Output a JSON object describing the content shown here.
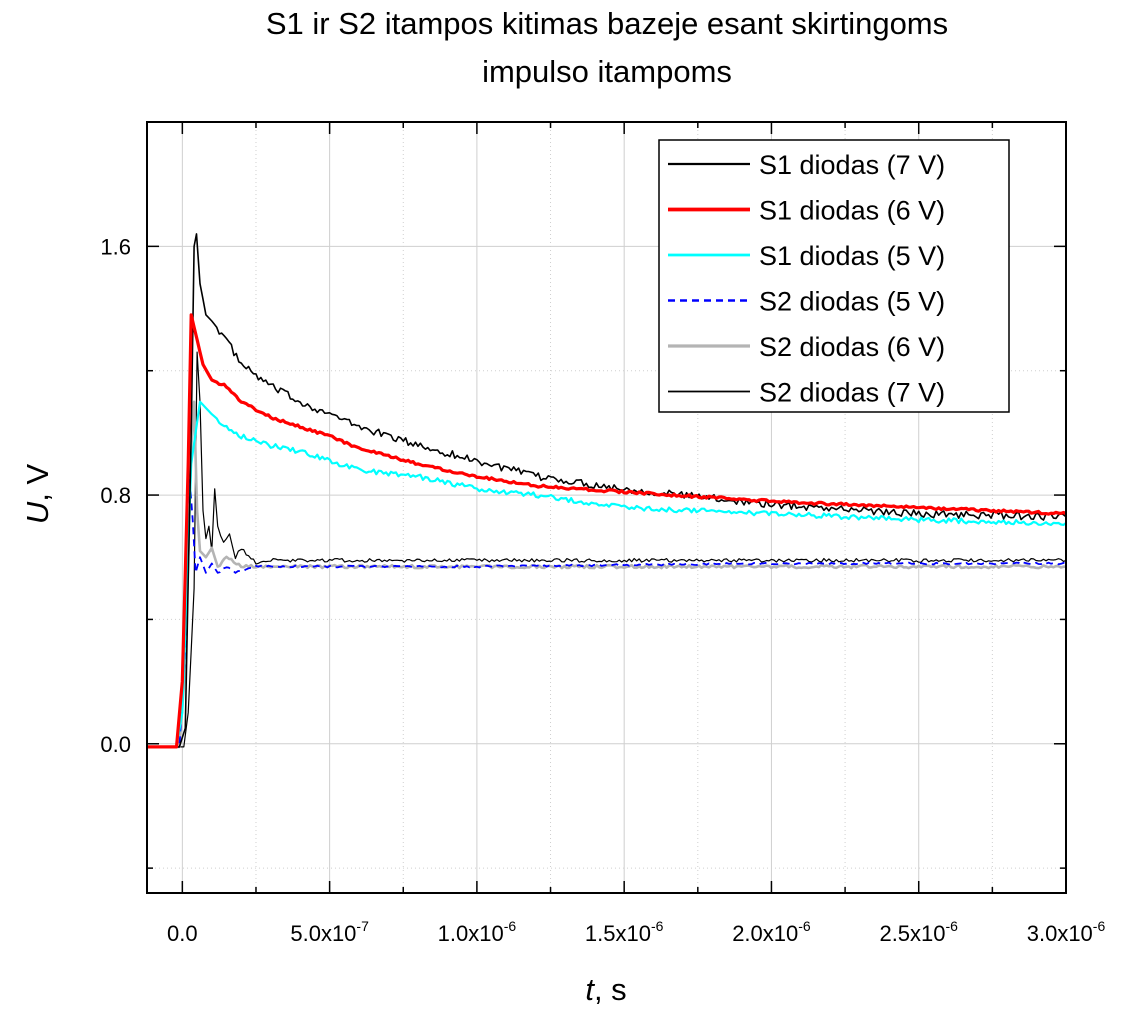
{
  "chart_data": {
    "type": "line",
    "title_lines": [
      "S1 ir S2 itampos kitimas bazeje esant skirtingoms",
      "impulso itampoms"
    ],
    "xlabel": "t",
    "xlabel_unit": ", s",
    "ylabel": "U",
    "ylabel_unit": ", V",
    "xlim": [
      -1.2e-07,
      3e-06
    ],
    "ylim": [
      -0.48,
      2.0
    ],
    "x_ticks": [
      {
        "value": 0,
        "mant": "0.0",
        "exp": ""
      },
      {
        "value": 5e-07,
        "mant": "5.0x10",
        "exp": "-7"
      },
      {
        "value": 1e-06,
        "mant": "1.0x10",
        "exp": "-6"
      },
      {
        "value": 1.5e-06,
        "mant": "1.5x10",
        "exp": "-6"
      },
      {
        "value": 2e-06,
        "mant": "2.0x10",
        "exp": "-6"
      },
      {
        "value": 2.5e-06,
        "mant": "2.5x10",
        "exp": "-6"
      },
      {
        "value": 3e-06,
        "mant": "3.0x10",
        "exp": "-6"
      }
    ],
    "y_ticks": [
      {
        "value": 0,
        "label": "0.0"
      },
      {
        "value": 0.8,
        "label": "0.8"
      },
      {
        "value": 1.6,
        "label": "1.6"
      }
    ],
    "y_minor_ticks": [
      -0.4,
      0.4,
      1.2
    ],
    "grid": true,
    "legend_position": "top-right",
    "series": [
      {
        "name": "S1 diodas (7 V)",
        "color": "#000000",
        "width": 1.6,
        "dash": "",
        "noise": 0.012,
        "x": [
          -1.2e-07,
          -1e-08,
          1e-08,
          3e-08,
          4e-08,
          4.8e-08,
          6e-08,
          8e-08,
          1e-07,
          1.5e-07,
          2e-07,
          3e-07,
          4e-07,
          5e-07,
          6e-07,
          8e-07,
          1e-06,
          1.2e-06,
          1.5e-06,
          2e-06,
          2.5e-06,
          3e-06
        ],
        "y": [
          -0.01,
          -0.01,
          0.05,
          1.0,
          1.6,
          1.64,
          1.48,
          1.38,
          1.36,
          1.3,
          1.22,
          1.15,
          1.1,
          1.06,
          1.02,
          0.96,
          0.91,
          0.86,
          0.82,
          0.77,
          0.74,
          0.73
        ]
      },
      {
        "name": "S1 diodas (6 V)",
        "color": "#ff0000",
        "width": 3.2,
        "dash": "",
        "noise": 0.004,
        "x": [
          -1.2e-07,
          -2e-08,
          0,
          2e-08,
          3e-08,
          5e-08,
          7e-08,
          1e-07,
          1.5e-07,
          2e-07,
          3e-07,
          4e-07,
          5e-07,
          6e-07,
          8e-07,
          1e-06,
          1.2e-06,
          1.5e-06,
          2e-06,
          2.5e-06,
          3e-06
        ],
        "y": [
          -0.01,
          -0.01,
          0.2,
          0.9,
          1.38,
          1.3,
          1.22,
          1.17,
          1.15,
          1.1,
          1.05,
          1.02,
          0.99,
          0.95,
          0.9,
          0.86,
          0.83,
          0.81,
          0.78,
          0.76,
          0.74
        ]
      },
      {
        "name": "S1 diodas (5 V)",
        "color": "#00ffff",
        "width": 2.2,
        "dash": "",
        "noise": 0.008,
        "x": [
          -1.2e-07,
          -2e-08,
          0,
          3e-08,
          6e-08,
          8e-08,
          1e-07,
          1.5e-07,
          2e-07,
          3e-07,
          4e-07,
          5e-07,
          6e-07,
          8e-07,
          1e-06,
          1.2e-06,
          1.5e-06,
          2e-06,
          2.5e-06,
          3e-06
        ],
        "y": [
          -0.01,
          -0.01,
          0.1,
          0.9,
          1.1,
          1.08,
          1.06,
          1.02,
          0.99,
          0.96,
          0.94,
          0.91,
          0.88,
          0.86,
          0.82,
          0.8,
          0.76,
          0.74,
          0.72,
          0.71
        ]
      },
      {
        "name": "S2 diodas (5 V)",
        "color": "#0000ff",
        "width": 1.8,
        "dash": "7,5",
        "noise": 0.003,
        "x": [
          -1.2e-07,
          -1e-08,
          1e-08,
          2.5e-08,
          3.5e-08,
          4.5e-08,
          6e-08,
          8e-08,
          1e-07,
          1.2e-07,
          1.5e-07,
          1.8e-07,
          2.5e-07,
          4e-07,
          1e-06,
          2e-06,
          3e-06
        ],
        "y": [
          -0.01,
          -0.01,
          0.3,
          0.85,
          0.72,
          0.55,
          0.6,
          0.55,
          0.58,
          0.55,
          0.57,
          0.55,
          0.57,
          0.57,
          0.57,
          0.58,
          0.58
        ]
      },
      {
        "name": "S2 diodas (6 V)",
        "color": "#b4b4b4",
        "width": 2.6,
        "dash": "",
        "noise": 0.005,
        "x": [
          -1.2e-07,
          -1e-08,
          1e-08,
          3e-08,
          4e-08,
          5e-08,
          6e-08,
          8e-08,
          1e-07,
          1.2e-07,
          1.5e-07,
          2e-07,
          3e-07,
          5e-07,
          1e-06,
          2e-06,
          3e-06
        ],
        "y": [
          -0.01,
          -0.01,
          0.25,
          0.95,
          1.1,
          0.75,
          0.62,
          0.6,
          0.63,
          0.57,
          0.6,
          0.57,
          0.57,
          0.57,
          0.57,
          0.57,
          0.57
        ]
      },
      {
        "name": "S2 diodas (7 V)",
        "color": "#000000",
        "width": 1.2,
        "dash": "",
        "noise": 0.006,
        "x": [
          -1.2e-07,
          5e-09,
          2e-08,
          4e-08,
          5e-08,
          6e-08,
          7e-08,
          8e-08,
          9e-08,
          1e-07,
          1.1e-07,
          1.2e-07,
          1.4e-07,
          1.6e-07,
          1.8e-07,
          2e-07,
          2.5e-07,
          3e-07,
          5e-07,
          1e-06,
          2e-06,
          3e-06
        ],
        "y": [
          -0.01,
          -0.01,
          0.1,
          0.5,
          1.26,
          1.1,
          0.75,
          0.66,
          0.7,
          0.62,
          0.82,
          0.7,
          0.65,
          0.68,
          0.6,
          0.63,
          0.58,
          0.59,
          0.59,
          0.59,
          0.59,
          0.59
        ]
      }
    ]
  }
}
